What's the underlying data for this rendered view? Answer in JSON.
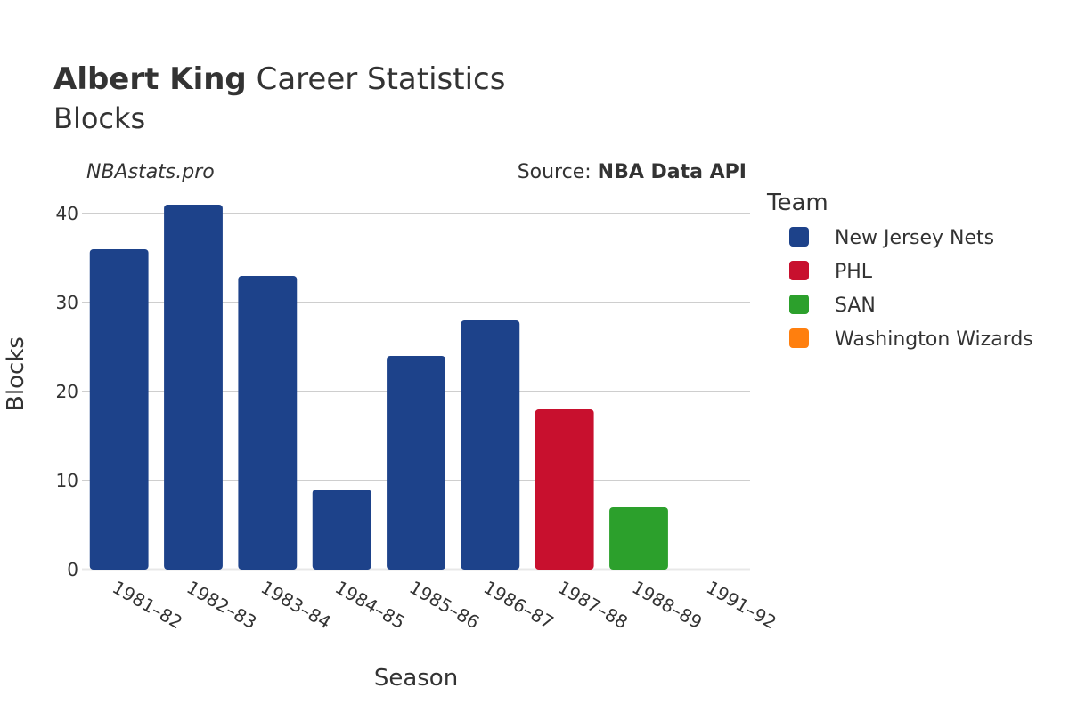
{
  "header": {
    "player": "Albert King",
    "title_rest": " Career Statistics",
    "subtitle": "Blocks",
    "watermark": "NBAstats.pro",
    "source_prefix": "Source: ",
    "source_name": "NBA Data API"
  },
  "chart_data": {
    "type": "bar",
    "xlabel": "Season",
    "ylabel": "Blocks",
    "ylim": [
      0,
      42
    ],
    "yticks": [
      0,
      10,
      20,
      30,
      40
    ],
    "grid": true,
    "legend_title": "Team",
    "legend_position": "right",
    "categories": [
      "1981–82",
      "1982–83",
      "1983–84",
      "1984–85",
      "1985–86",
      "1986–87",
      "1987–88",
      "1988–89",
      "1991–92"
    ],
    "bars": [
      {
        "season": "1981–82",
        "team": "New Jersey Nets",
        "value": 36
      },
      {
        "season": "1982–83",
        "team": "New Jersey Nets",
        "value": 41
      },
      {
        "season": "1983–84",
        "team": "New Jersey Nets",
        "value": 33
      },
      {
        "season": "1984–85",
        "team": "New Jersey Nets",
        "value": 9
      },
      {
        "season": "1985–86",
        "team": "New Jersey Nets",
        "value": 24
      },
      {
        "season": "1986–87",
        "team": "New Jersey Nets",
        "value": 28
      },
      {
        "season": "1987–88",
        "team": "PHL",
        "value": 18
      },
      {
        "season": "1988–89",
        "team": "SAN",
        "value": 7
      },
      {
        "season": "1991–92",
        "team": "Washington Wizards",
        "value": 0
      }
    ],
    "legend": [
      {
        "name": "New Jersey Nets",
        "color": "#1d428a"
      },
      {
        "name": "PHL",
        "color": "#c8102e"
      },
      {
        "name": "SAN",
        "color": "#2ca02c"
      },
      {
        "name": "Washington Wizards",
        "color": "#ff7f0e"
      }
    ]
  }
}
